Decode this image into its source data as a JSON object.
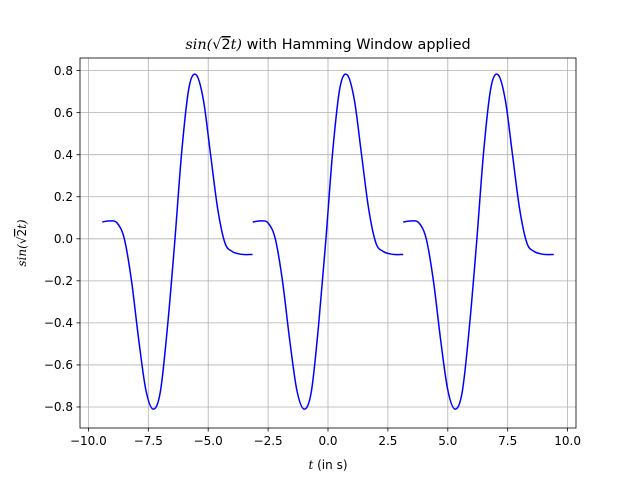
{
  "chart_data": {
    "type": "line",
    "title": {
      "prefix": "sin(",
      "sqrt_radicand": "2",
      "suffix": "t)",
      "rest": " with Hamming Window applied"
    },
    "xlabel": {
      "var": "t",
      "rest": " (in s)"
    },
    "ylabel": {
      "prefix": "sin(",
      "sqrt_radicand": "2",
      "suffix": "t)"
    },
    "xlim": [
      -10.35,
      10.35
    ],
    "ylim": [
      -0.9,
      0.86
    ],
    "x_ticks": [
      -10.0,
      -7.5,
      -5.0,
      -2.5,
      0.0,
      2.5,
      5.0,
      7.5,
      10.0
    ],
    "x_tick_labels": [
      "−10.0",
      "−7.5",
      "−5.0",
      "−2.5",
      "0.0",
      "2.5",
      "5.0",
      "7.5",
      "10.0"
    ],
    "y_ticks": [
      -0.8,
      -0.6,
      -0.4,
      -0.2,
      0.0,
      0.2,
      0.4,
      0.6,
      0.8
    ],
    "y_tick_labels": [
      "−0.8",
      "−0.6",
      "−0.4",
      "−0.2",
      "0.0",
      "0.2",
      "0.4",
      "0.6",
      "0.8"
    ],
    "grid": true,
    "line_color": "#0000ff",
    "series": [
      {
        "segments": [
          {
            "x": [
              -9.42,
              -9.1,
              -8.8,
              -8.5,
              -8.2,
              -7.9,
              -7.6,
              -7.3,
              -7.0,
              -6.7,
              -6.4,
              -6.1,
              -5.8,
              -5.5,
              -5.2,
              -4.9,
              -4.6,
              -4.3,
              -4.0,
              -3.7,
              -3.5,
              -3.3,
              -3.15
            ],
            "y": [
              0.08,
              0.085,
              0.075,
              0.0,
              -0.2,
              -0.48,
              -0.72,
              -0.81,
              -0.73,
              -0.42,
              -0.02,
              0.42,
              0.72,
              0.78,
              0.66,
              0.4,
              0.14,
              -0.02,
              -0.06,
              -0.072,
              -0.075,
              -0.075,
              -0.075
            ]
          },
          {
            "x": [
              -3.14,
              -2.8,
              -2.5,
              -2.2,
              -1.9,
              -1.6,
              -1.3,
              -1.0,
              -0.7,
              -0.4,
              -0.1,
              0.2,
              0.5,
              0.8,
              1.1,
              1.4,
              1.7,
              2.0,
              2.3,
              2.6,
              2.8,
              3.0,
              3.14
            ],
            "y": [
              0.08,
              0.085,
              0.075,
              0.0,
              -0.2,
              -0.48,
              -0.72,
              -0.81,
              -0.73,
              -0.42,
              -0.02,
              0.42,
              0.72,
              0.78,
              0.66,
              0.4,
              0.14,
              -0.02,
              -0.06,
              -0.072,
              -0.075,
              -0.075,
              -0.075
            ]
          },
          {
            "x": [
              3.14,
              3.5,
              3.8,
              4.1,
              4.4,
              4.7,
              5.0,
              5.3,
              5.6,
              5.9,
              6.2,
              6.5,
              6.8,
              7.1,
              7.4,
              7.7,
              8.0,
              8.3,
              8.6,
              8.9,
              9.1,
              9.3,
              9.42
            ],
            "y": [
              0.08,
              0.085,
              0.075,
              0.0,
              -0.2,
              -0.48,
              -0.72,
              -0.81,
              -0.73,
              -0.42,
              -0.02,
              0.42,
              0.72,
              0.78,
              0.66,
              0.4,
              0.14,
              -0.02,
              -0.06,
              -0.072,
              -0.075,
              -0.075,
              -0.075
            ]
          }
        ]
      }
    ]
  }
}
